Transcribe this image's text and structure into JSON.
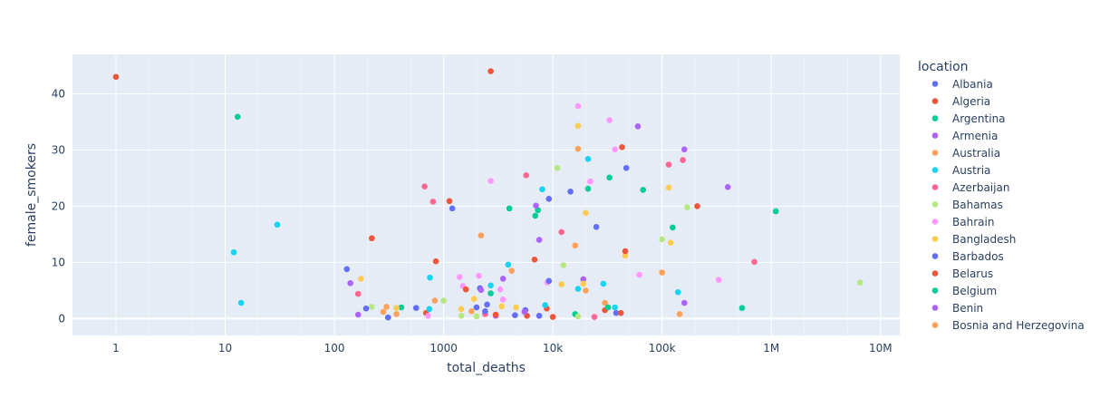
{
  "chart_data": {
    "type": "scatter",
    "title": "",
    "xlabel": "total_deaths",
    "ylabel": "female_smokers",
    "x_scale": "log",
    "xlim": [
      0.4,
      15000000
    ],
    "ylim": [
      -3,
      47
    ],
    "x_ticks": [
      {
        "value": 1,
        "label": "1"
      },
      {
        "value": 10,
        "label": "10"
      },
      {
        "value": 100,
        "label": "100"
      },
      {
        "value": 1000,
        "label": "1000"
      },
      {
        "value": 10000,
        "label": "10k"
      },
      {
        "value": 100000,
        "label": "100k"
      },
      {
        "value": 1000000,
        "label": "1M"
      },
      {
        "value": 10000000,
        "label": "10M"
      }
    ],
    "y_ticks": [
      {
        "value": 0,
        "label": "0"
      },
      {
        "value": 10,
        "label": "10"
      },
      {
        "value": 20,
        "label": "20"
      },
      {
        "value": 30,
        "label": "30"
      },
      {
        "value": 40,
        "label": "40"
      }
    ],
    "grid": true,
    "legend_title": "location",
    "legend_position": "right",
    "series": [
      {
        "name": "Albania",
        "color": "#636efa",
        "points": [
          [
            130,
            8.8
          ],
          [
            310,
            0.2
          ],
          [
            560,
            1.9
          ],
          [
            1200,
            19.6
          ],
          [
            2150,
            5.4
          ],
          [
            4500,
            0.6
          ],
          [
            7500,
            0.5
          ],
          [
            9200,
            21.3
          ],
          [
            14500,
            22.6
          ],
          [
            25000,
            16.3
          ],
          [
            47000,
            26.8
          ],
          [
            38000,
            1.0
          ],
          [
            2500,
            2.5
          ]
        ]
      },
      {
        "name": "Algeria",
        "color": "#EF553B",
        "points": [
          [
            1,
            43.0
          ],
          [
            690,
            1.0
          ],
          [
            1130,
            20.9
          ],
          [
            2700,
            44.0
          ],
          [
            5800,
            0.5
          ],
          [
            43000,
            30.5
          ],
          [
            8800,
            1.8
          ]
        ]
      },
      {
        "name": "Argentina",
        "color": "#00cc96",
        "points": [
          [
            13,
            35.9
          ],
          [
            410,
            2.0
          ],
          [
            4000,
            19.6
          ],
          [
            6900,
            18.3
          ],
          [
            7300,
            19.3
          ],
          [
            16000,
            0.8
          ],
          [
            21000,
            23.1
          ],
          [
            33000,
            25.1
          ],
          [
            67000,
            22.9
          ],
          [
            125000,
            16.2
          ],
          [
            540000,
            1.9
          ],
          [
            1100000,
            19.1
          ]
        ]
      },
      {
        "name": "Armenia",
        "color": "#ab63fa",
        "points": [
          [
            140,
            6.3
          ],
          [
            165,
            0.7
          ],
          [
            3000,
            0.5
          ],
          [
            7000,
            20.1
          ],
          [
            7500,
            14.0
          ],
          [
            19000,
            7.0
          ],
          [
            60000,
            34.2
          ],
          [
            160000,
            30.1
          ],
          [
            400000,
            23.4
          ],
          [
            160000,
            2.8
          ],
          [
            2200,
            5.1
          ]
        ]
      },
      {
        "name": "Australia",
        "color": "#FFA15A",
        "points": [
          [
            280,
            1.2
          ],
          [
            300,
            2.1
          ],
          [
            370,
            0.8
          ],
          [
            1800,
            1.3
          ],
          [
            2200,
            14.8
          ],
          [
            4200,
            8.5
          ],
          [
            16000,
            13.0
          ],
          [
            17000,
            30.2
          ],
          [
            20000,
            5.0
          ],
          [
            30000,
            2.8
          ],
          [
            100000,
            8.2
          ],
          [
            145000,
            0.8
          ]
        ]
      },
      {
        "name": "Austria",
        "color": "#19d3f3",
        "points": [
          [
            12,
            11.8
          ],
          [
            14,
            2.8
          ],
          [
            30,
            16.7
          ],
          [
            750,
            7.3
          ],
          [
            740,
            1.7
          ],
          [
            3900,
            9.6
          ],
          [
            2700,
            5.9
          ],
          [
            8000,
            23.0
          ],
          [
            8500,
            2.4
          ],
          [
            17000,
            5.3
          ],
          [
            21000,
            28.4
          ],
          [
            29000,
            6.2
          ],
          [
            37000,
            2.0
          ],
          [
            140000,
            4.7
          ]
        ]
      },
      {
        "name": "Azerbaijan",
        "color": "#FF6692",
        "points": [
          [
            165,
            4.4
          ],
          [
            670,
            23.5
          ],
          [
            800,
            20.8
          ],
          [
            5700,
            25.5
          ],
          [
            12000,
            15.4
          ],
          [
            24000,
            0.3
          ],
          [
            115000,
            27.4
          ],
          [
            155000,
            28.2
          ],
          [
            700000,
            10.1
          ],
          [
            2400,
            0.8
          ]
        ]
      },
      {
        "name": "Bahamas",
        "color": "#B6E880",
        "points": [
          [
            220,
            2.1
          ],
          [
            1000,
            3.2
          ],
          [
            1450,
            0.5
          ],
          [
            2000,
            0.4
          ],
          [
            11000,
            26.8
          ],
          [
            12500,
            9.5
          ],
          [
            17000,
            0.4
          ],
          [
            100000,
            14.1
          ],
          [
            170000,
            19.8
          ],
          [
            6500000,
            6.4
          ]
        ]
      },
      {
        "name": "Bahrain",
        "color": "#FF97FF",
        "points": [
          [
            720,
            0.5
          ],
          [
            1400,
            7.4
          ],
          [
            1500,
            5.8
          ],
          [
            2100,
            7.6
          ],
          [
            2700,
            24.5
          ],
          [
            3300,
            5.2
          ],
          [
            3500,
            3.4
          ],
          [
            8900,
            6.4
          ],
          [
            17000,
            37.8
          ],
          [
            22000,
            24.4
          ],
          [
            33000,
            35.3
          ],
          [
            37000,
            30.1
          ],
          [
            62000,
            7.8
          ],
          [
            330000,
            6.9
          ]
        ]
      },
      {
        "name": "Bangladesh",
        "color": "#FECB52",
        "points": [
          [
            175,
            7.1
          ],
          [
            370,
            1.9
          ],
          [
            1450,
            1.7
          ],
          [
            1900,
            3.5
          ],
          [
            3400,
            2.2
          ],
          [
            4600,
            2.0
          ],
          [
            12000,
            6.1
          ],
          [
            17000,
            34.3
          ],
          [
            19000,
            6.2
          ],
          [
            20000,
            18.8
          ],
          [
            46000,
            11.2
          ],
          [
            115000,
            23.3
          ],
          [
            120000,
            13.5
          ]
        ]
      },
      {
        "name": "Barbados",
        "color": "#636efa",
        "points": [
          [
            195,
            1.8
          ],
          [
            2400,
            1.3
          ],
          [
            5600,
            1.5
          ],
          [
            9200,
            6.7
          ],
          [
            2000,
            2.0
          ]
        ]
      },
      {
        "name": "Belarus",
        "color": "#EF553B",
        "points": [
          [
            220,
            14.3
          ],
          [
            850,
            10.2
          ],
          [
            1600,
            5.2
          ],
          [
            3000,
            0.7
          ],
          [
            6800,
            10.5
          ],
          [
            10000,
            0.3
          ],
          [
            30000,
            1.5
          ],
          [
            42000,
            1.0
          ],
          [
            46000,
            12.0
          ],
          [
            210000,
            20.0
          ]
        ]
      },
      {
        "name": "Belgium",
        "color": "#00cc96",
        "points": [
          [
            2700,
            4.5
          ],
          [
            32000,
            2.0
          ]
        ]
      },
      {
        "name": "Benin",
        "color": "#ab63fa",
        "points": [
          [
            3500,
            7.1
          ],
          [
            5500,
            1.2
          ]
        ]
      },
      {
        "name": "Bosnia and Herzegovina",
        "color": "#FFA15A",
        "points": [
          [
            830,
            3.2
          ]
        ]
      }
    ]
  }
}
